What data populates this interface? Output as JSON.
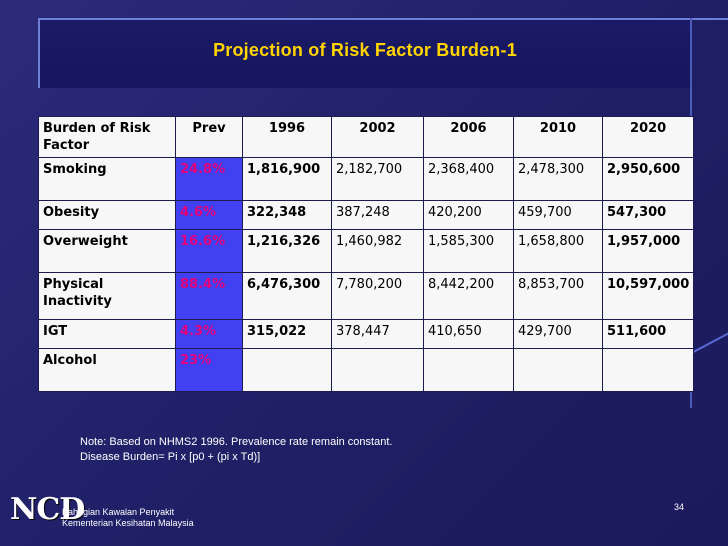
{
  "slide": {
    "title": "Projection of Risk Factor Burden-1",
    "page_number": "34"
  },
  "table": {
    "headers": [
      "Burden of Risk Factor",
      "Prev",
      "1996",
      "2002",
      "2006",
      "2010",
      "2020"
    ],
    "rows": [
      {
        "factor": "Smoking",
        "prev": "24.8%",
        "y1996": "1,816,900",
        "y2002": "2,182,700",
        "y2006": "2,368,400",
        "y2010": "2,478,300",
        "y2020": "2,950,600"
      },
      {
        "factor": "Obesity",
        "prev": "4.6%",
        "y1996": "322,348",
        "y2002": "387,248",
        "y2006": "420,200",
        "y2010": "459,700",
        "y2020": "547,300"
      },
      {
        "factor": "Overweight",
        "prev": "16.6%",
        "y1996": "1,216,326",
        "y2002": "1,460,982",
        "y2006": "1,585,300",
        "y2010": "1,658,800",
        "y2020": "1,957,000"
      },
      {
        "factor": "Physical Inactivity",
        "prev": "88.4%",
        "y1996": "6,476,300",
        "y2002": "7,780,200",
        "y2006": "8,442,200",
        "y2010": "8,853,700",
        "y2020": "10,597,000"
      },
      {
        "factor": "IGT",
        "prev": "4.3%",
        "y1996": "315,022",
        "y2002": "378,447",
        "y2006": "410,650",
        "y2010": "429,700",
        "y2020": "511,600"
      },
      {
        "factor": "Alcohol",
        "prev": "23%",
        "y1996": "",
        "y2002": "",
        "y2006": "",
        "y2010": "",
        "y2020": ""
      }
    ]
  },
  "note": {
    "line1": "Note: Based on NHMS2 1996. Prevalence rate remain constant.",
    "line2": "Disease Burden= Pi  x [p0 + (pi  x Td)]"
  },
  "logo": {
    "mark": "NCD",
    "org_line1": "Bahagian Kawalan Penyakit",
    "org_line2": "Kementerian Kesihatan Malaysia"
  }
}
